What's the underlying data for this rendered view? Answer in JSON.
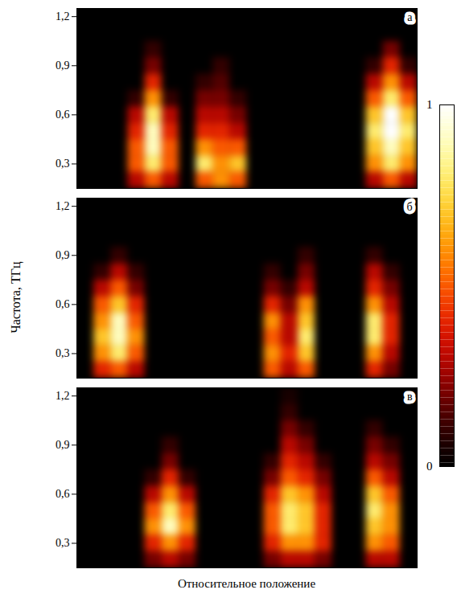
{
  "chart_data": {
    "type": "heatmap",
    "ylabel": "Частота, ТГц",
    "xlabel": "Относительное положение",
    "tick_labels": "y",
    "xlim": [
      0,
      20
    ],
    "ylim": [
      0.15,
      1.25
    ],
    "yticks": [
      {
        "value": 0.3,
        "label": "0,3"
      },
      {
        "value": 0.6,
        "label": "0,6"
      },
      {
        "value": 0.9,
        "label": "0,9"
      },
      {
        "value": 1.2,
        "label": "1,2"
      }
    ],
    "x_bins": [
      0,
      1,
      2,
      3,
      4,
      5,
      6,
      7,
      8,
      9,
      10,
      11,
      12,
      13,
      14,
      15,
      16,
      17,
      18,
      19,
      20
    ],
    "y_bins": [
      0.15,
      0.25,
      0.35,
      0.45,
      0.55,
      0.65,
      0.75,
      0.85,
      0.95,
      1.05,
      1.15,
      1.25
    ],
    "colorbar": {
      "range": [
        0,
        1
      ],
      "ticks": [
        0,
        1
      ]
    },
    "panels": [
      {
        "title": "а",
        "z": [
          [
            0,
            0,
            0,
            0.3,
            0.5,
            0.3,
            0,
            0.5,
            0.6,
            0.5,
            0,
            0,
            0,
            0,
            0,
            0,
            0,
            0.3,
            0.5,
            0.3
          ],
          [
            0,
            0,
            0,
            0.5,
            0.8,
            0.5,
            0,
            0.8,
            0.6,
            0.7,
            0,
            0,
            0,
            0,
            0,
            0,
            0,
            0.6,
            0.8,
            0.6
          ],
          [
            0,
            0,
            0,
            0.5,
            0.9,
            0.5,
            0,
            0.6,
            0.5,
            0.5,
            0,
            0,
            0,
            0,
            0,
            0,
            0,
            0.7,
            0.9,
            0.7
          ],
          [
            0,
            0,
            0,
            0.4,
            0.9,
            0.4,
            0,
            0.4,
            0.4,
            0.3,
            0,
            0,
            0,
            0,
            0,
            0,
            0,
            0.8,
            1,
            0.8
          ],
          [
            0,
            0,
            0,
            0.3,
            0.8,
            0.3,
            0,
            0.3,
            0.3,
            0.2,
            0,
            0,
            0,
            0,
            0,
            0,
            0,
            0.7,
            1,
            0.7
          ],
          [
            0,
            0,
            0,
            0.1,
            0.6,
            0.1,
            0,
            0.2,
            0.2,
            0.1,
            0,
            0,
            0,
            0,
            0,
            0,
            0,
            0.5,
            0.8,
            0.5
          ],
          [
            0,
            0,
            0,
            0,
            0.4,
            0,
            0,
            0.1,
            0.15,
            0,
            0,
            0,
            0,
            0,
            0,
            0,
            0,
            0.3,
            0.6,
            0.3
          ],
          [
            0,
            0,
            0,
            0,
            0.2,
            0,
            0,
            0,
            0.1,
            0,
            0,
            0,
            0,
            0,
            0,
            0,
            0,
            0.1,
            0.4,
            0.1
          ],
          [
            0,
            0,
            0,
            0,
            0.1,
            0,
            0,
            0,
            0,
            0,
            0,
            0,
            0,
            0,
            0,
            0,
            0,
            0,
            0.2,
            0
          ],
          [
            0,
            0,
            0,
            0,
            0,
            0,
            0,
            0,
            0,
            0,
            0,
            0,
            0,
            0,
            0,
            0,
            0,
            0,
            0,
            0
          ],
          [
            0,
            0,
            0,
            0,
            0,
            0,
            0,
            0,
            0,
            0,
            0,
            0,
            0,
            0,
            0,
            0,
            0,
            0,
            0,
            0
          ]
        ]
      },
      {
        "title": "б",
        "z": [
          [
            0,
            0.4,
            0.5,
            0.3,
            0,
            0,
            0,
            0,
            0,
            0,
            0,
            0.5,
            0.3,
            0.5,
            0,
            0,
            0,
            0.4,
            0.2,
            0
          ],
          [
            0,
            0.6,
            0.8,
            0.5,
            0,
            0,
            0,
            0,
            0,
            0,
            0,
            0.6,
            0.4,
            0.7,
            0,
            0,
            0,
            0.6,
            0.3,
            0
          ],
          [
            0,
            0.7,
            0.9,
            0.6,
            0,
            0,
            0,
            0,
            0,
            0,
            0,
            0.5,
            0.3,
            0.8,
            0,
            0,
            0,
            0.8,
            0.4,
            0
          ],
          [
            0,
            0.6,
            0.9,
            0.5,
            0,
            0,
            0,
            0,
            0,
            0,
            0,
            0.6,
            0.3,
            0.7,
            0,
            0,
            0,
            0.8,
            0.4,
            0
          ],
          [
            0,
            0.5,
            0.7,
            0.4,
            0,
            0,
            0,
            0,
            0,
            0,
            0,
            0.4,
            0.2,
            0.6,
            0,
            0,
            0,
            0.6,
            0.3,
            0
          ],
          [
            0,
            0.3,
            0.5,
            0.2,
            0,
            0,
            0,
            0,
            0,
            0,
            0,
            0.2,
            0.1,
            0.3,
            0,
            0,
            0,
            0.4,
            0.2,
            0
          ],
          [
            0,
            0.1,
            0.3,
            0.1,
            0,
            0,
            0,
            0,
            0,
            0,
            0,
            0.1,
            0,
            0.2,
            0,
            0,
            0,
            0.3,
            0.1,
            0
          ],
          [
            0,
            0,
            0.1,
            0,
            0,
            0,
            0,
            0,
            0,
            0,
            0,
            0,
            0,
            0.1,
            0,
            0,
            0,
            0.1,
            0,
            0
          ],
          [
            0,
            0,
            0,
            0,
            0,
            0,
            0,
            0,
            0,
            0,
            0,
            0,
            0,
            0,
            0,
            0,
            0,
            0,
            0,
            0
          ],
          [
            0,
            0,
            0,
            0,
            0,
            0,
            0,
            0,
            0,
            0,
            0,
            0,
            0,
            0,
            0,
            0,
            0,
            0,
            0,
            0
          ],
          [
            0,
            0,
            0,
            0,
            0,
            0,
            0,
            0,
            0,
            0,
            0,
            0,
            0,
            0,
            0,
            0,
            0,
            0,
            0,
            0
          ]
        ]
      },
      {
        "title": "в",
        "z": [
          [
            0,
            0,
            0,
            0,
            0.2,
            0.3,
            0.2,
            0,
            0,
            0,
            0,
            0.2,
            0.3,
            0.3,
            0.2,
            0,
            0,
            0.3,
            0.3,
            0
          ],
          [
            0,
            0,
            0,
            0,
            0.4,
            0.6,
            0.4,
            0,
            0,
            0,
            0,
            0.4,
            0.6,
            0.6,
            0.4,
            0,
            0,
            0.6,
            0.5,
            0
          ],
          [
            0,
            0,
            0,
            0,
            0.6,
            0.9,
            0.6,
            0,
            0,
            0,
            0,
            0.5,
            0.8,
            0.7,
            0.4,
            0,
            0,
            0.7,
            0.6,
            0
          ],
          [
            0,
            0,
            0,
            0,
            0.5,
            0.8,
            0.5,
            0,
            0,
            0,
            0,
            0.5,
            0.8,
            0.7,
            0.4,
            0,
            0,
            0.8,
            0.6,
            0
          ],
          [
            0,
            0,
            0,
            0,
            0.3,
            0.6,
            0.3,
            0,
            0,
            0,
            0,
            0.4,
            0.7,
            0.6,
            0.3,
            0,
            0,
            0.7,
            0.5,
            0
          ],
          [
            0,
            0,
            0,
            0,
            0.1,
            0.4,
            0.1,
            0,
            0,
            0,
            0,
            0.2,
            0.5,
            0.4,
            0.2,
            0,
            0,
            0.5,
            0.3,
            0
          ],
          [
            0,
            0,
            0,
            0,
            0,
            0.2,
            0,
            0,
            0,
            0,
            0,
            0.1,
            0.4,
            0.3,
            0.1,
            0,
            0,
            0.3,
            0.2,
            0
          ],
          [
            0,
            0,
            0,
            0,
            0,
            0.1,
            0,
            0,
            0,
            0,
            0,
            0,
            0.3,
            0.2,
            0,
            0,
            0,
            0.2,
            0.1,
            0
          ],
          [
            0,
            0,
            0,
            0,
            0,
            0,
            0,
            0,
            0,
            0,
            0,
            0,
            0.2,
            0.1,
            0,
            0,
            0,
            0.1,
            0,
            0
          ],
          [
            0,
            0,
            0,
            0,
            0,
            0,
            0,
            0,
            0,
            0,
            0,
            0,
            0.1,
            0,
            0,
            0,
            0,
            0,
            0,
            0
          ],
          [
            0,
            0,
            0,
            0,
            0,
            0,
            0,
            0,
            0,
            0,
            0,
            0,
            0.05,
            0,
            0,
            0,
            0,
            0,
            0,
            0
          ]
        ]
      }
    ]
  }
}
